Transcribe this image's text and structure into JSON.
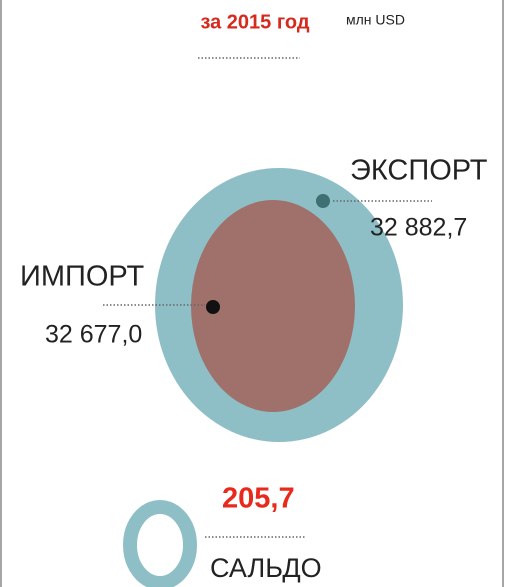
{
  "chart_data": {
    "type": "bubble",
    "title": "за 2015 год",
    "subtitle": "млн USD",
    "categories": [
      "ЭКСПОРТ",
      "ИМПОРТ"
    ],
    "values": [
      32882.7,
      32677.0
    ],
    "value_labels": [
      "32 882,7",
      "32 677,0"
    ],
    "colors": [
      "#8fbfc6",
      "#a0706a"
    ],
    "dot_colors": [
      "#3d6f73",
      "#111111"
    ],
    "balance": {
      "label": "САЛЬДО",
      "value": 205.7,
      "value_label": "205,7",
      "color": "#8fbfc6",
      "label_color": "#e8291c"
    }
  }
}
